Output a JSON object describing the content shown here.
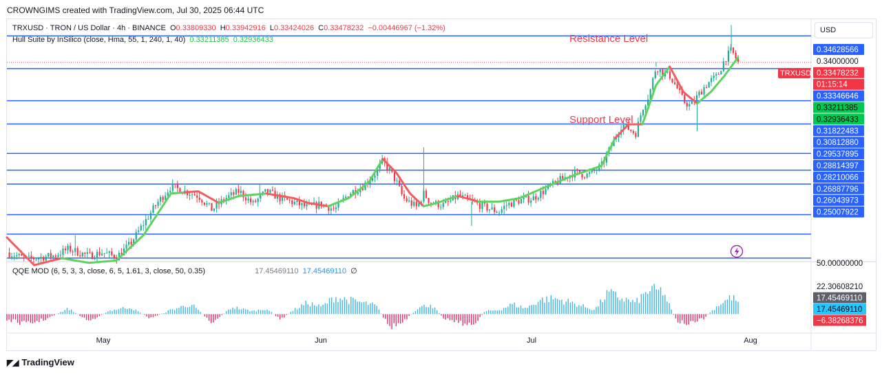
{
  "header": {
    "credit": "CROWNGIMS created with TradingView.com, Jul 30, 2025 06:44 UTC"
  },
  "legend": {
    "symbol": "TRXUSD · TRON / US Dollar · 4h · BINANCE",
    "o_label": "O",
    "o_value": "0.33809330",
    "h_label": "H",
    "h_value": "0.33942916",
    "l_label": "L",
    "l_value": "0.33424026",
    "c_label": "C",
    "c_value": "0.33478232",
    "change": "−0.00446967 (−1.32%)",
    "indicator": "Hull Suite by InSilico (close, Hma, 55, 1, 240, 1, 40)",
    "ind_value1": "0.33211385",
    "ind_value2": "0.32936433",
    "qqe": "QQE MOD (6, 5, 3, 3, close, 6, 5, 1.61, 3, close, 50, 0.35)",
    "qqe_value1": "17.45469110",
    "qqe_value2": "17.45469110",
    "qqe_icon": "no-symbol-icon"
  },
  "currency": "USD",
  "annotations": {
    "resistance": "Resistance Level",
    "support": "Support Level"
  },
  "footer": {
    "logo_text": "TradingView",
    "logo_icon": "tradingview-logo-icon"
  },
  "colors": {
    "up": "#22ab94",
    "down": "#f23645",
    "level": "#2962ff",
    "hull_up": "#5dd35d",
    "hull_down": "#f25c5c",
    "qqe_pos": "#3cb6e3",
    "qqe_neg": "#e0306a"
  },
  "chart_data": {
    "type": "candlestick",
    "symbol": "TRXUSD",
    "timeframe": "4h",
    "x_months": [
      "May",
      "Jun",
      "Jul",
      "Aug"
    ],
    "ylim": [
      0.2488,
      0.3535
    ],
    "y_ticks": [
      "0.34000000"
    ],
    "horizontal_levels": [
      "0.34628566",
      "0.33211385",
      "0.31822483",
      "0.30812880",
      "0.29537895",
      "0.28814397",
      "0.28210066",
      "0.26887796",
      "0.26043973",
      "0.25007922"
    ],
    "price_labels": [
      {
        "text": "0.34628566",
        "style": "level"
      },
      {
        "text": "0.34000000",
        "style": "plain"
      },
      {
        "text": "TRXUSD",
        "style": "red-tag"
      },
      {
        "text": "0.33478232",
        "style": "red"
      },
      {
        "text": "01:15:14",
        "style": "red"
      },
      {
        "text": "0.33346646",
        "style": "level"
      },
      {
        "text": "0.33211385",
        "style": "green"
      },
      {
        "text": "0.32936433",
        "style": "green"
      },
      {
        "text": "0.31822483",
        "style": "level"
      },
      {
        "text": "0.30812880",
        "style": "level"
      },
      {
        "text": "0.29537895",
        "style": "level"
      },
      {
        "text": "0.28814397",
        "style": "level"
      },
      {
        "text": "0.28210066",
        "style": "level"
      },
      {
        "text": "0.26887796",
        "style": "level"
      },
      {
        "text": "0.26043973",
        "style": "level"
      },
      {
        "text": "0.25007922",
        "style": "level"
      }
    ],
    "last_price": 0.33478232,
    "close_path": [
      [
        0,
        0.2525
      ],
      [
        3,
        0.2495
      ],
      [
        7,
        0.2512
      ],
      [
        9,
        0.254
      ],
      [
        12,
        0.251
      ],
      [
        14,
        0.2525
      ],
      [
        16,
        0.2505
      ],
      [
        18,
        0.256
      ],
      [
        20,
        0.265
      ],
      [
        22,
        0.274
      ],
      [
        24,
        0.281
      ],
      [
        26,
        0.279
      ],
      [
        28,
        0.277
      ],
      [
        30,
        0.271
      ],
      [
        32,
        0.276
      ],
      [
        34,
        0.279
      ],
      [
        36,
        0.2735
      ],
      [
        38,
        0.279
      ],
      [
        40,
        0.276
      ],
      [
        42,
        0.274
      ],
      [
        44,
        0.272
      ],
      [
        46,
        0.2735
      ],
      [
        48,
        0.271
      ],
      [
        50,
        0.278
      ],
      [
        52,
        0.281
      ],
      [
        54,
        0.287
      ],
      [
        55,
        0.292
      ],
      [
        56,
        0.288
      ],
      [
        57,
        0.283
      ],
      [
        58,
        0.276
      ],
      [
        60,
        0.272
      ],
      [
        61,
        0.278
      ],
      [
        62,
        0.274
      ],
      [
        64,
        0.273
      ],
      [
        66,
        0.277
      ],
      [
        68,
        0.2745
      ],
      [
        70,
        0.272
      ],
      [
        72,
        0.27
      ],
      [
        73,
        0.273
      ],
      [
        75,
        0.275
      ],
      [
        77,
        0.276
      ],
      [
        79,
        0.28
      ],
      [
        81,
        0.284
      ],
      [
        83,
        0.287
      ],
      [
        85,
        0.286
      ],
      [
        87,
        0.29
      ],
      [
        88,
        0.296
      ],
      [
        89,
        0.302
      ],
      [
        90,
        0.308
      ],
      [
        91,
        0.306
      ],
      [
        92,
        0.304
      ],
      [
        93,
        0.315
      ],
      [
        94,
        0.321
      ],
      [
        95,
        0.333
      ],
      [
        96,
        0.33
      ],
      [
        97,
        0.329
      ],
      [
        98,
        0.324
      ],
      [
        99,
        0.318
      ],
      [
        100,
        0.316
      ],
      [
        101,
        0.32
      ],
      [
        102,
        0.324
      ],
      [
        103,
        0.327
      ],
      [
        104,
        0.329
      ],
      [
        105,
        0.336
      ],
      [
        106,
        0.34
      ],
      [
        107,
        0.3348
      ]
    ],
    "spikes": [
      [
        10,
        0.26
      ],
      [
        37,
        0.282
      ],
      [
        61,
        0.298
      ],
      [
        68,
        0.264
      ],
      [
        95,
        0.335
      ],
      [
        101,
        0.305
      ],
      [
        106,
        0.351
      ]
    ],
    "hull_path": [
      [
        0,
        0.259
      ],
      [
        4,
        0.247
      ],
      [
        8,
        0.25
      ],
      [
        12,
        0.248
      ],
      [
        16,
        0.249
      ],
      [
        20,
        0.26
      ],
      [
        24,
        0.278
      ],
      [
        28,
        0.279
      ],
      [
        31,
        0.274
      ],
      [
        34,
        0.277
      ],
      [
        38,
        0.278
      ],
      [
        42,
        0.276
      ],
      [
        44,
        0.274
      ],
      [
        47,
        0.2725
      ],
      [
        50,
        0.276
      ],
      [
        53,
        0.283
      ],
      [
        55,
        0.293
      ],
      [
        57,
        0.287
      ],
      [
        59,
        0.278
      ],
      [
        61,
        0.2725
      ],
      [
        63,
        0.274
      ],
      [
        66,
        0.277
      ],
      [
        69,
        0.2745
      ],
      [
        72,
        0.2745
      ],
      [
        75,
        0.276
      ],
      [
        79,
        0.281
      ],
      [
        83,
        0.286
      ],
      [
        87,
        0.29
      ],
      [
        89,
        0.302
      ],
      [
        91,
        0.308
      ],
      [
        93,
        0.308
      ],
      [
        95,
        0.325
      ],
      [
        97,
        0.333
      ],
      [
        99,
        0.322
      ],
      [
        101,
        0.317
      ],
      [
        103,
        0.322
      ],
      [
        105,
        0.329
      ],
      [
        107,
        0.337
      ]
    ],
    "hull_direction": [
      [
        0,
        8,
        "down"
      ],
      [
        8,
        18,
        "up"
      ],
      [
        18,
        26,
        "up"
      ],
      [
        26,
        31,
        "down"
      ],
      [
        31,
        38,
        "up"
      ],
      [
        38,
        47,
        "down"
      ],
      [
        47,
        55,
        "up"
      ],
      [
        55,
        61,
        "down"
      ],
      [
        61,
        66,
        "up"
      ],
      [
        66,
        69,
        "down"
      ],
      [
        69,
        89,
        "up"
      ],
      [
        89,
        93,
        "down"
      ],
      [
        93,
        97,
        "up"
      ],
      [
        97,
        101,
        "down"
      ],
      [
        101,
        107,
        "up"
      ]
    ],
    "qqe": {
      "ylim": [
        -20,
        55
      ],
      "y_ticks": [
        {
          "text": "50.00000000",
          "style": "plain"
        },
        {
          "text": "22.30608210",
          "style": "plain"
        },
        {
          "text": "17.45469110",
          "style": "gray"
        },
        {
          "text": "17.45469110",
          "style": "blue"
        },
        {
          "text": "−6.38268376",
          "style": "red"
        }
      ],
      "envelope": [
        [
          0,
          -8
        ],
        [
          3,
          -14
        ],
        [
          6,
          -6
        ],
        [
          9,
          8
        ],
        [
          12,
          -10
        ],
        [
          15,
          5
        ],
        [
          18,
          10
        ],
        [
          21,
          -6
        ],
        [
          24,
          6
        ],
        [
          27,
          14
        ],
        [
          30,
          -12
        ],
        [
          33,
          10
        ],
        [
          36,
          4
        ],
        [
          38,
          8
        ],
        [
          40,
          -8
        ],
        [
          42,
          6
        ],
        [
          44,
          16
        ],
        [
          46,
          10
        ],
        [
          48,
          24
        ],
        [
          50,
          20
        ],
        [
          52,
          16
        ],
        [
          54,
          12
        ],
        [
          56,
          -18
        ],
        [
          58,
          -12
        ],
        [
          60,
          8
        ],
        [
          62,
          14
        ],
        [
          64,
          -6
        ],
        [
          66,
          -10
        ],
        [
          68,
          -18
        ],
        [
          70,
          4
        ],
        [
          72,
          6
        ],
        [
          74,
          14
        ],
        [
          76,
          8
        ],
        [
          78,
          20
        ],
        [
          80,
          22
        ],
        [
          82,
          18
        ],
        [
          84,
          12
        ],
        [
          86,
          6
        ],
        [
          88,
          30
        ],
        [
          90,
          22
        ],
        [
          92,
          16
        ],
        [
          94,
          34
        ],
        [
          96,
          32
        ],
        [
          98,
          -10
        ],
        [
          100,
          -14
        ],
        [
          102,
          -6
        ],
        [
          104,
          12
        ],
        [
          106,
          24
        ],
        [
          107,
          17.45
        ]
      ]
    }
  }
}
